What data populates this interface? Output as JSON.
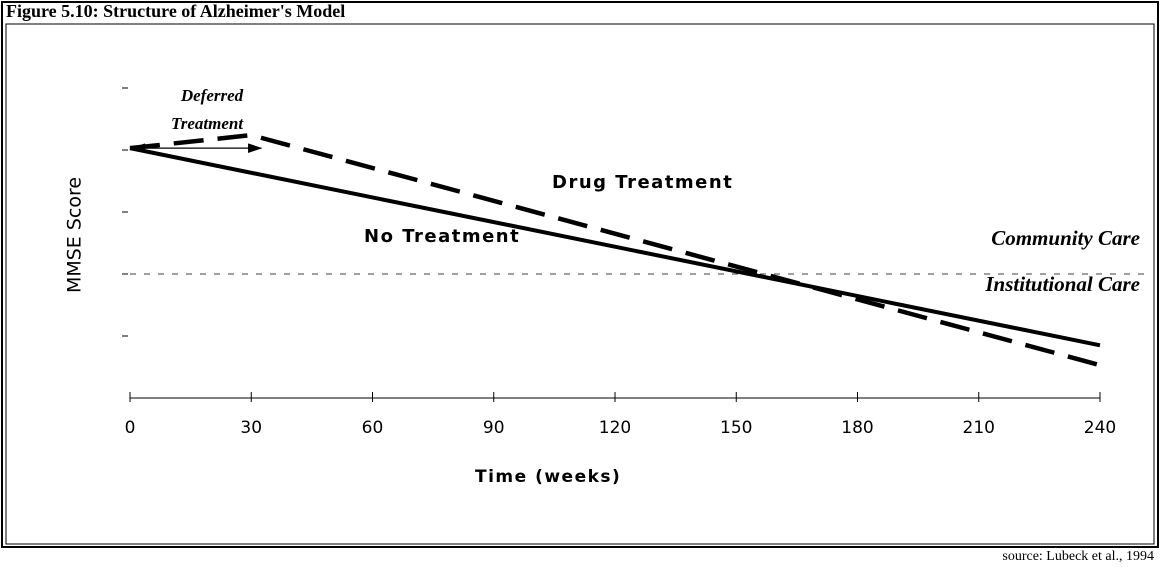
{
  "chart_data": {
    "type": "line",
    "title": "Figure 5.10: Structure of Alzheimer's Model",
    "xlabel": "Time (weeks)",
    "ylabel": "MMSE Score",
    "x": [
      0,
      30,
      240
    ],
    "xlim": [
      0,
      240
    ],
    "xticks": [
      0,
      30,
      60,
      90,
      120,
      150,
      180,
      210,
      240
    ],
    "ylim": [
      0,
      5
    ],
    "threshold": 2,
    "series": [
      {
        "name": "No Treatment",
        "color": "#000000",
        "style": "solid",
        "values": [
          4.03,
          null,
          0.85
        ]
      },
      {
        "name": "Drug Treatment",
        "color": "#000000",
        "style": "dashed",
        "values": [
          4.03,
          4.24,
          0.53
        ]
      }
    ],
    "annotations": {
      "deferred": "Deferred Treatment",
      "community": "Community Care",
      "institutional": "Institutional Care"
    },
    "source": "source: Lubeck et al., 1994"
  }
}
